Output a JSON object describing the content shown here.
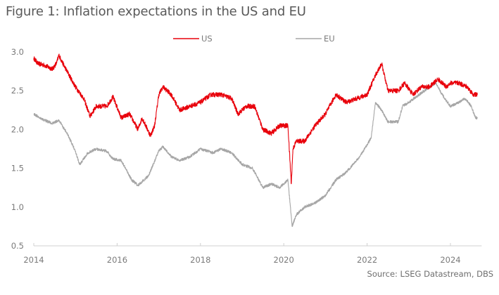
{
  "chart_data": {
    "type": "line",
    "title": "Figure 1: Inflation expectations in the US and EU",
    "xlabel": "",
    "ylabel": "",
    "source": "Source: LSEG Datastream, DBS",
    "xlim": [
      2014,
      2024.75
    ],
    "ylim": [
      0.5,
      3.0
    ],
    "x_ticks": [
      2014,
      2016,
      2018,
      2020,
      2022,
      2024
    ],
    "x_tick_labels": [
      "2014",
      "2016",
      "2018",
      "2020",
      "2022",
      "2024"
    ],
    "y_ticks": [
      0.5,
      1.0,
      1.5,
      2.0,
      2.5,
      3.0
    ],
    "y_tick_labels": [
      "0.5",
      "1.0",
      "1.5",
      "2.0",
      "2.5",
      "3.0"
    ],
    "grid": false,
    "legend_position": "top-center",
    "series": [
      {
        "name": "US",
        "color": "#e8000b",
        "x": [
          2014.0,
          2014.1,
          2014.25,
          2014.45,
          2014.55,
          2014.6,
          2014.7,
          2014.8,
          2015.0,
          2015.2,
          2015.35,
          2015.5,
          2015.75,
          2015.9,
          2016.1,
          2016.3,
          2016.5,
          2016.6,
          2016.8,
          2016.9,
          2017.0,
          2017.1,
          2017.3,
          2017.5,
          2017.75,
          2018.0,
          2018.25,
          2018.5,
          2018.75,
          2018.9,
          2019.1,
          2019.3,
          2019.5,
          2019.7,
          2019.9,
          2020.1,
          2020.18,
          2020.22,
          2020.3,
          2020.5,
          2020.75,
          2021.0,
          2021.25,
          2021.5,
          2021.75,
          2022.0,
          2022.2,
          2022.35,
          2022.5,
          2022.75,
          2022.9,
          2023.1,
          2023.3,
          2023.5,
          2023.7,
          2023.9,
          2024.0,
          2024.2,
          2024.4,
          2024.55,
          2024.65
        ],
        "values": [
          2.92,
          2.85,
          2.83,
          2.78,
          2.86,
          2.96,
          2.85,
          2.75,
          2.55,
          2.4,
          2.17,
          2.3,
          2.3,
          2.42,
          2.15,
          2.2,
          2.0,
          2.15,
          1.92,
          2.05,
          2.45,
          2.55,
          2.45,
          2.25,
          2.3,
          2.35,
          2.45,
          2.45,
          2.4,
          2.2,
          2.3,
          2.3,
          2.0,
          1.95,
          2.05,
          2.05,
          1.3,
          1.75,
          1.85,
          1.85,
          2.05,
          2.2,
          2.45,
          2.35,
          2.4,
          2.45,
          2.7,
          2.85,
          2.5,
          2.5,
          2.6,
          2.45,
          2.55,
          2.55,
          2.65,
          2.55,
          2.6,
          2.6,
          2.55,
          2.45,
          2.45
        ]
      },
      {
        "name": "EU",
        "color": "#a6a6a6",
        "x": [
          2014.0,
          2014.25,
          2014.45,
          2014.6,
          2014.8,
          2015.0,
          2015.1,
          2015.3,
          2015.5,
          2015.75,
          2015.9,
          2016.1,
          2016.35,
          2016.5,
          2016.75,
          2017.0,
          2017.1,
          2017.3,
          2017.5,
          2017.75,
          2018.0,
          2018.3,
          2018.5,
          2018.75,
          2019.0,
          2019.25,
          2019.5,
          2019.7,
          2019.9,
          2020.1,
          2020.2,
          2020.3,
          2020.5,
          2020.75,
          2021.0,
          2021.25,
          2021.5,
          2021.75,
          2022.0,
          2022.1,
          2022.2,
          2022.35,
          2022.5,
          2022.75,
          2022.85,
          2023.0,
          2023.25,
          2023.5,
          2023.65,
          2023.8,
          2024.0,
          2024.2,
          2024.35,
          2024.5,
          2024.6,
          2024.65
        ],
        "values": [
          2.2,
          2.12,
          2.08,
          2.12,
          1.95,
          1.72,
          1.55,
          1.7,
          1.75,
          1.72,
          1.62,
          1.6,
          1.35,
          1.28,
          1.4,
          1.72,
          1.78,
          1.65,
          1.6,
          1.65,
          1.75,
          1.7,
          1.75,
          1.7,
          1.55,
          1.5,
          1.25,
          1.3,
          1.25,
          1.35,
          0.75,
          0.9,
          1.0,
          1.05,
          1.15,
          1.35,
          1.45,
          1.6,
          1.8,
          1.9,
          2.35,
          2.25,
          2.1,
          2.1,
          2.3,
          2.35,
          2.45,
          2.55,
          2.6,
          2.45,
          2.3,
          2.35,
          2.4,
          2.3,
          2.15,
          2.15
        ]
      }
    ]
  }
}
